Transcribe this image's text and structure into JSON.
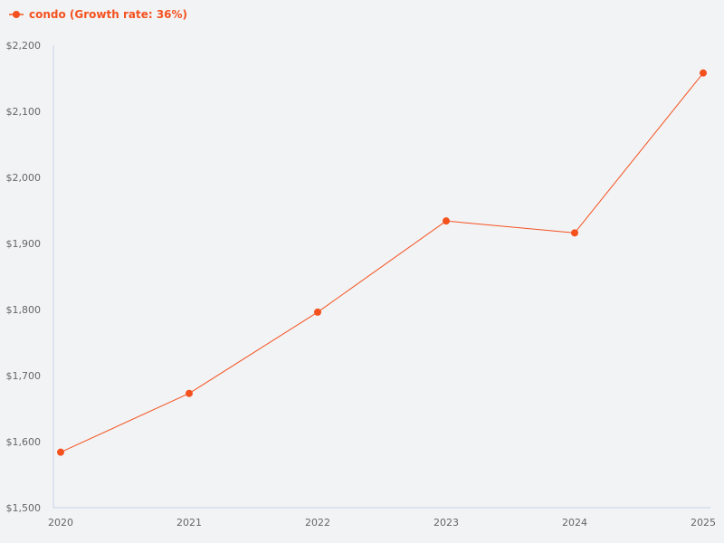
{
  "legend": {
    "label": "condo (Growth rate: 36%)"
  },
  "colors": {
    "series": "#f4511e",
    "axis": "#c8d3e6",
    "background": "#f2f3f5",
    "tick_text": "#666666"
  },
  "chart_data": {
    "type": "line",
    "title": "",
    "xlabel": "",
    "ylabel": "",
    "categories": [
      "2020",
      "2021",
      "2022",
      "2023",
      "2024",
      "2025"
    ],
    "series": [
      {
        "name": "condo (Growth rate: 36%)",
        "values": [
          1584,
          1673,
          1796,
          1934,
          1916,
          2158
        ]
      }
    ],
    "ylim": [
      1500,
      2200
    ],
    "yticks": [
      1500,
      1600,
      1700,
      1800,
      1900,
      2000,
      2100,
      2200
    ],
    "ytick_labels": [
      "$1,500",
      "$1,600",
      "$1,700",
      "$1,800",
      "$1,900",
      "$2,000",
      "$2,100",
      "$2,200"
    ],
    "grid": false,
    "legend_position": "top-left"
  }
}
